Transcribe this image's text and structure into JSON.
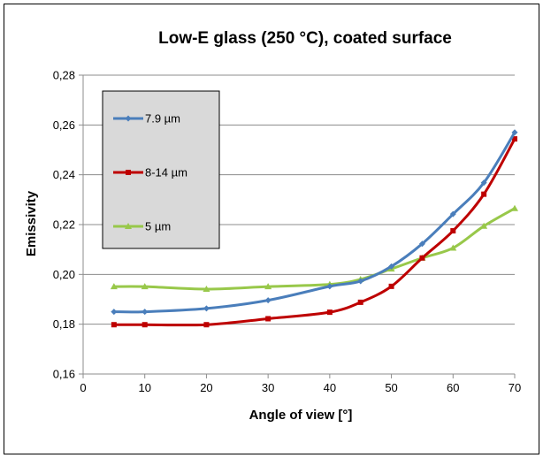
{
  "chart_data": {
    "type": "line",
    "title": "Low-E glass (250 °C), coated surface",
    "xlabel": "Angle of view [°]",
    "ylabel": "Emissivity",
    "xlim": [
      0,
      70
    ],
    "ylim": [
      0.16,
      0.28
    ],
    "x_ticks": [
      "0",
      "10",
      "20",
      "30",
      "40",
      "50",
      "60",
      "70"
    ],
    "y_ticks": [
      "0,16",
      "0,18",
      "0,20",
      "0,22",
      "0,24",
      "0,26",
      "0,28"
    ],
    "grid": "horizontal",
    "legend_position": "top-left",
    "series": [
      {
        "name": "7.9 µm",
        "color": "#4a7ebb",
        "marker": "diamond",
        "x": [
          5,
          10,
          20,
          30,
          40,
          45,
          50,
          55,
          60,
          65,
          70
        ],
        "values": [
          0.185,
          0.185,
          0.1863,
          0.1896,
          0.1952,
          0.1973,
          0.2032,
          0.2123,
          0.2242,
          0.2368,
          0.257
        ]
      },
      {
        "name": "8-14 µm",
        "color": "#be0000",
        "marker": "square",
        "x": [
          5,
          10,
          20,
          30,
          40,
          45,
          50,
          55,
          60,
          65,
          70
        ],
        "values": [
          0.1798,
          0.1798,
          0.1798,
          0.1822,
          0.1848,
          0.1888,
          0.1952,
          0.2066,
          0.2175,
          0.2322,
          0.2544
        ]
      },
      {
        "name": "5 µm",
        "color": "#98c84a",
        "marker": "triangle",
        "x": [
          5,
          10,
          20,
          30,
          40,
          45,
          50,
          55,
          60,
          65,
          70
        ],
        "values": [
          0.1951,
          0.1951,
          0.1941,
          0.1951,
          0.196,
          0.198,
          0.2022,
          0.2066,
          0.2106,
          0.2194,
          0.2265
        ]
      }
    ]
  }
}
